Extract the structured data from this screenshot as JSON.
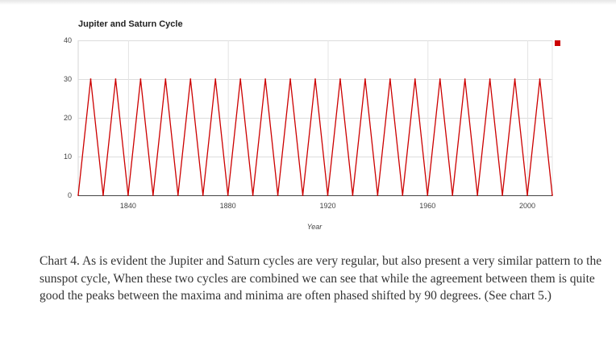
{
  "chart_data": {
    "type": "line",
    "title": "Jupiter and Saturn Cycle",
    "xlabel": "Year",
    "ylabel": "",
    "xlim": [
      1820,
      2010
    ],
    "ylim": [
      0,
      40
    ],
    "x_ticks": [
      1840,
      1880,
      1920,
      1960,
      2000
    ],
    "y_ticks": [
      0,
      10,
      20,
      30,
      40
    ],
    "grid": true,
    "legend_position": "top-right",
    "series": [
      {
        "color": "#cc0000",
        "x": [
          1820,
          1825,
          1830,
          1835,
          1840,
          1845,
          1850,
          1855,
          1860,
          1865,
          1870,
          1875,
          1880,
          1885,
          1890,
          1895,
          1900,
          1905,
          1910,
          1915,
          1920,
          1925,
          1930,
          1935,
          1940,
          1945,
          1950,
          1955,
          1960,
          1965,
          1970,
          1975,
          1980,
          1985,
          1990,
          1995,
          2000,
          2005,
          2010
        ],
        "values": [
          0,
          30,
          0,
          30,
          0,
          30,
          0,
          30,
          0,
          30,
          0,
          30,
          0,
          30,
          0,
          30,
          0,
          30,
          0,
          30,
          0,
          30,
          0,
          30,
          0,
          30,
          0,
          30,
          0,
          30,
          0,
          30,
          0,
          30,
          0,
          30,
          0,
          30,
          0
        ]
      }
    ]
  },
  "caption": "Chart 4. As is evident the Jupiter and Saturn cycles are very regular, but also present a very similar pattern to the sunspot cycle, When these two cycles are combined we can see that while the agreement between them is quite good the peaks between the maxima and minima are often phased shifted by 90 degrees. (See chart 5.)"
}
